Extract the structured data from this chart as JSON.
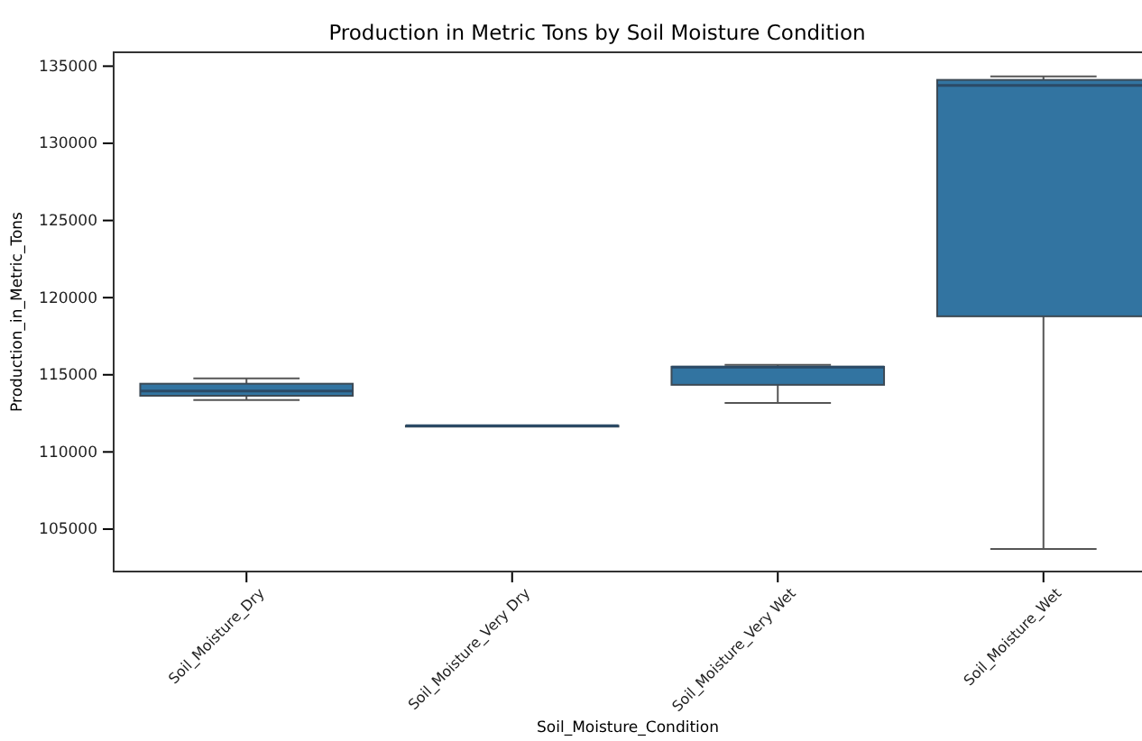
{
  "chart_data": {
    "type": "box",
    "title": "Production in Metric Tons by Soil Moisture Condition",
    "xlabel": "Soil_Moisture_Condition",
    "ylabel": "Production_in_Metric_Tons",
    "categories": [
      "Soil_Moisture_Dry",
      "Soil_Moisture_Very Dry",
      "Soil_Moisture_Very Wet",
      "Soil_Moisture_Wet"
    ],
    "series": [
      {
        "color": "#3274a1",
        "boxes": [
          {
            "low": 113360,
            "q1": 113640,
            "median": 113950,
            "q3": 114420,
            "high": 114770
          },
          {
            "low": 111700,
            "q1": 111700,
            "median": 111700,
            "q3": 111700,
            "high": 111700
          },
          {
            "low": 113180,
            "q1": 114350,
            "median": 115500,
            "q3": 115520,
            "high": 115640
          },
          {
            "low": 103710,
            "q1": 118790,
            "median": 133760,
            "q3": 134110,
            "high": 134340
          }
        ]
      }
    ],
    "ylim": [
      102250,
      135900
    ],
    "yticks": [
      105000,
      110000,
      115000,
      120000,
      125000,
      130000,
      135000
    ],
    "grid": false
  }
}
